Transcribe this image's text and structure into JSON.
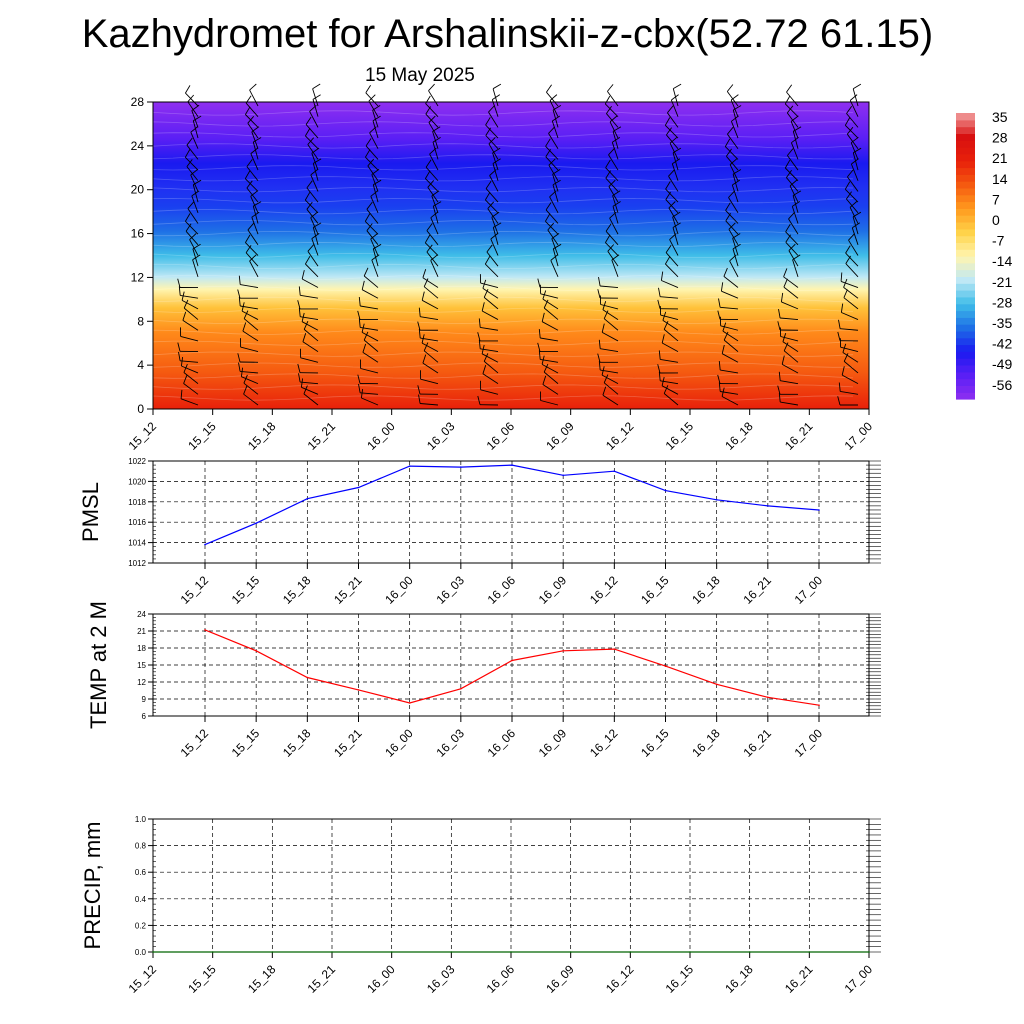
{
  "title": "Kazhydromet for Arshalinskii-z-cbx(52.72 61.15)",
  "subtitle": "15 May 2025",
  "chart_data": [
    {
      "type": "heatmap",
      "ylim": [
        0,
        28
      ],
      "yticks": [
        "0",
        "4",
        "8",
        "12",
        "16",
        "20",
        "24",
        "28"
      ],
      "xticks": [
        "15_12",
        "15_15",
        "15_18",
        "15_21",
        "16_00",
        "16_03",
        "16_06",
        "16_09",
        "16_12",
        "16_15",
        "16_18",
        "16_21",
        "17_00"
      ],
      "colorbar": {
        "labels": [
          "35",
          "28",
          "21",
          "14",
          "7",
          "0",
          "-7",
          "-14",
          "-21",
          "-28",
          "-35",
          "-42",
          "-49",
          "-56"
        ],
        "range": [
          -60,
          38
        ]
      },
      "colors": {
        "stops": [
          "#8f2ff0",
          "#5a1ff5",
          "#1a1af0",
          "#1e6fe6",
          "#3fbde8",
          "#bfe8f5",
          "#fff5b0",
          "#ffd34a",
          "#ff9a1e",
          "#f55a10",
          "#e8200a",
          "#d81010"
        ],
        "surface": "#e8200a",
        "wind_barb": "#000000"
      }
    },
    {
      "type": "line",
      "ylabel": "PMSL",
      "ylim": [
        1012,
        1022
      ],
      "yticks": [
        "1012",
        "1014",
        "1016",
        "1018",
        "1020",
        "1022"
      ],
      "x": [
        "15_12",
        "15_15",
        "15_18",
        "15_21",
        "16_00",
        "16_03",
        "16_06",
        "16_09",
        "16_12",
        "16_15",
        "16_18",
        "16_21",
        "17_00"
      ],
      "values": [
        1013.8,
        1015.9,
        1018.3,
        1019.4,
        1021.5,
        1021.4,
        1021.6,
        1020.6,
        1021.0,
        1019.1,
        1018.2,
        1017.6,
        1017.2
      ],
      "grid": true,
      "color": "#0000ff"
    },
    {
      "type": "line",
      "ylabel": "TEMP at 2 M",
      "ylim": [
        6,
        24
      ],
      "yticks": [
        "6",
        "9",
        "12",
        "15",
        "18",
        "21",
        "24"
      ],
      "x": [
        "15_12",
        "15_15",
        "15_18",
        "15_21",
        "16_00",
        "16_03",
        "16_06",
        "16_09",
        "16_12",
        "16_15",
        "16_18",
        "16_21",
        "17_00"
      ],
      "values": [
        21.2,
        17.5,
        12.8,
        10.6,
        8.3,
        10.8,
        15.8,
        17.5,
        17.8,
        14.8,
        11.6,
        9.3,
        7.9
      ],
      "grid": true,
      "color": "#ff0000"
    },
    {
      "type": "line",
      "ylabel": "PRECIP, mm",
      "ylim": [
        0,
        1
      ],
      "yticks": [
        "0.0",
        "0.2",
        "0.4",
        "0.6",
        "0.8",
        "1.0"
      ],
      "xticks": [
        "15_12",
        "15_15",
        "15_18",
        "15_21",
        "16_00",
        "16_03",
        "16_06",
        "16_09",
        "16_12",
        "16_15",
        "16_18",
        "16_21",
        "17_00"
      ],
      "values": [
        0,
        0,
        0,
        0,
        0,
        0,
        0,
        0,
        0,
        0,
        0,
        0,
        0
      ],
      "grid": true,
      "color": "#006400"
    }
  ]
}
